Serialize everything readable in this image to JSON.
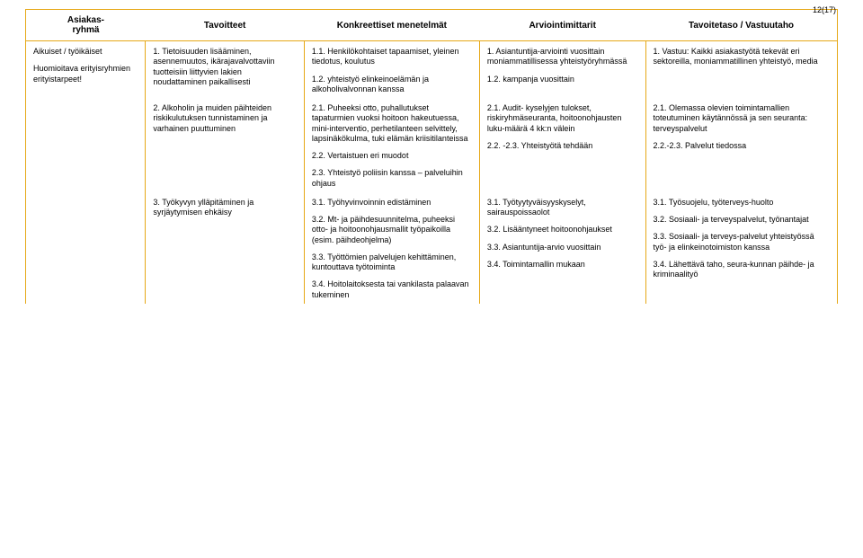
{
  "page_number": "12(17)",
  "headers": {
    "col1": "Asiakas-\nryhmä",
    "col2": "Tavoitteet",
    "col3": "Konkreettiset menetelmät",
    "col4": "Arviointimittarit",
    "col5": "Tavoitetaso / Vastuutaho"
  },
  "col1": {
    "p1": "Aikuiset / työikäiset",
    "p2": "Huomioitava erityisryhmien erityistarpeet!"
  },
  "col2": {
    "s1": "1. Tietoisuuden lisääminen, asennemuutos, ikärajavalvottaviin tuotteisiin liittyvien lakien noudattaminen paikallisesti",
    "s2": "2. Alkoholin ja muiden päihteiden riskikulutuksen tunnistaminen ja varhainen puuttuminen",
    "s3": "3. Työkyvyn ylläpitäminen ja syrjäytymisen ehkäisy"
  },
  "col3": {
    "s1a": "1.1. Henkilökohtaiset tapaamiset, yleinen tiedotus, koulutus",
    "s1b": "1.2. yhteistyö elinkeinoelämän ja alkoholivalvonnan kanssa",
    "s2a": "2.1. Puheeksi otto, puhallutukset tapaturmien vuoksi hoitoon hakeutuessa, mini-interventio, perhetilanteen selvittely, lapsinäkökulma, tuki elämän kriisitilanteissa",
    "s2b": "2.2. Vertaistuen eri muodot",
    "s2c": "2.3. Yhteistyö poliisin kanssa – palveluihin ohjaus",
    "s3a": "3.1. Työhyvinvoinnin edistäminen",
    "s3b": "3.2. Mt- ja päihdesuunnitelma, puheeksi otto- ja hoitoonohjausmallit työpaikoilla (esim. päihdeohjelma)",
    "s3c": "3.3. Työttömien palvelujen kehittäminen, kuntouttava työtoiminta",
    "s3d": "3.4. Hoitolaitoksesta tai vankilasta palaavan tukeminen"
  },
  "col4": {
    "s1a": "1. Asiantuntija-arviointi vuosittain moniammatillisessa yhteistyöryhmässä",
    "s1b": "1.2. kampanja vuosittain",
    "s2a": "2.1.  Audit- kyselyjen tulokset, riskiryhmäseuranta, hoitoonohjausten luku-määrä 4 kk:n välein",
    "s2b": "2.2. -2.3. Yhteistyötä tehdään",
    "s3a": "3.1. Työtyytyväisyyskyselyt, sairauspoissaolot",
    "s3b": "3.2. Lisääntyneet hoitoonohjaukset",
    "s3c": "3.3. Asiantuntija-arvio vuosittain",
    "s3d": "3.4. Toimintamallin mukaan"
  },
  "col5": {
    "s1": "1. Vastuu: Kaikki asiakastyötä tekevät eri sektoreilla, moniammatillinen yhteistyö, media",
    "s2a": "2.1. Olemassa olevien toimintamallien toteutuminen käytännössä ja sen seuranta: terveyspalvelut",
    "s2b": "2.2.-2.3. Palvelut tiedossa",
    "s3a": "3.1. Työsuojelu, työterveys-huolto",
    "s3b": "3.2. Sosiaali- ja terveyspalvelut, työnantajat",
    "s3c": "3.3. Sosiaali- ja terveys-palvelut yhteistyössä työ- ja elinkeinotoimiston kanssa",
    "s3d": "3.4. Lähettävä taho, seura-kunnan päihde- ja kriminaalityö"
  }
}
